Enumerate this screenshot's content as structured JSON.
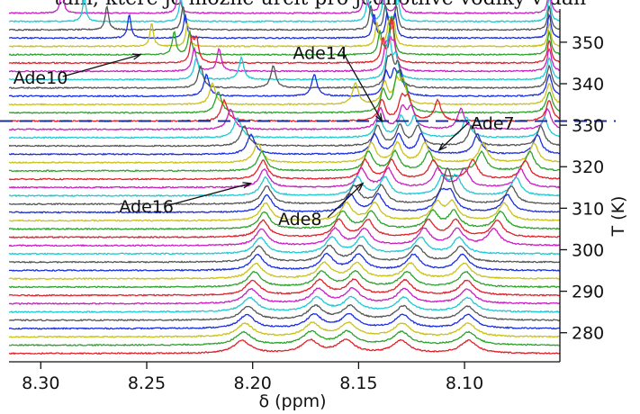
{
  "caption_fragment": "tain, které je možné určit pro jednotlivé vodíky v dan",
  "chart_data": {
    "type": "line",
    "title": "",
    "xlabel": "δ (ppm)",
    "ylabel": "T (K)",
    "x_ticks": [
      8.3,
      8.25,
      8.2,
      8.15,
      8.1
    ],
    "x_tick_labels": [
      "8.30",
      "8.25",
      "8.20",
      "8.15",
      "8.10"
    ],
    "xlim": [
      8.315,
      8.055
    ],
    "y_ticks": [
      280,
      290,
      300,
      310,
      320,
      330,
      340,
      350
    ],
    "y_tick_labels": [
      "280",
      "290",
      "300",
      "310",
      "320",
      "330",
      "340",
      "350"
    ],
    "ylim": [
      273,
      358
    ],
    "grid": false,
    "stack": {
      "first_temperature": 275,
      "last_temperature": 357,
      "step": 2
    },
    "trace_colors": [
      "#e0212a",
      "#2ba32b",
      "#c9c21a",
      "#1a2ee0",
      "#555555",
      "#1ec9d6",
      "#c91ec3"
    ],
    "dashed_line": {
      "temperature": 331,
      "color": "#1f2f8f"
    },
    "annotations": [
      {
        "label": "Ade10",
        "text_x": 8.313,
        "text_temperature": 340,
        "arrow_x": 8.253,
        "arrow_temperature": 347
      },
      {
        "label": "Ade14",
        "text_x": 8.181,
        "text_temperature": 346,
        "arrow_x": 8.139,
        "arrow_temperature": 331
      },
      {
        "label": "Ade7",
        "text_x": 8.097,
        "text_temperature": 329,
        "arrow_x": 8.112,
        "arrow_temperature": 324
      },
      {
        "label": "Ade16",
        "text_x": 8.263,
        "text_temperature": 309,
        "arrow_x": 8.201,
        "arrow_temperature": 316
      },
      {
        "label": "Ade8",
        "text_x": 8.188,
        "text_temperature": 306,
        "arrow_x": 8.148,
        "arrow_temperature": 316
      }
    ],
    "series": [
      {
        "signal": "Ade8",
        "points": [
          {
            "T": 275,
            "x": 8.173
          },
          {
            "T": 290,
            "x": 8.168
          },
          {
            "T": 300,
            "x": 8.162
          },
          {
            "T": 310,
            "x": 8.153
          },
          {
            "T": 318,
            "x": 8.146
          },
          {
            "T": 325,
            "x": 8.141
          },
          {
            "T": 340,
            "x": 8.136
          },
          {
            "T": 357,
            "x": 8.131
          }
        ]
      },
      {
        "signal": "Ade16",
        "points": [
          {
            "T": 275,
            "x": 8.205
          },
          {
            "T": 300,
            "x": 8.196
          },
          {
            "T": 310,
            "x": 8.193
          },
          {
            "T": 320,
            "x": 8.196
          },
          {
            "T": 330,
            "x": 8.212
          },
          {
            "T": 340,
            "x": 8.226
          },
          {
            "T": 357,
            "x": 8.235
          }
        ]
      },
      {
        "signal": "Ade14",
        "points": [
          {
            "T": 275,
            "x": 8.156
          },
          {
            "T": 290,
            "x": 8.152
          },
          {
            "T": 300,
            "x": 8.148
          },
          {
            "T": 310,
            "x": 8.14
          },
          {
            "T": 320,
            "x": 8.132
          },
          {
            "T": 330,
            "x": 8.129
          },
          {
            "T": 340,
            "x": 8.135
          },
          {
            "T": 357,
            "x": 8.147
          }
        ]
      },
      {
        "signal": "Ade7",
        "points": [
          {
            "T": 275,
            "x": 8.098
          },
          {
            "T": 290,
            "x": 8.099
          },
          {
            "T": 300,
            "x": 8.103
          },
          {
            "T": 310,
            "x": 8.107
          },
          {
            "T": 320,
            "x": 8.118
          },
          {
            "T": 330,
            "x": 8.126
          },
          {
            "T": 340,
            "x": 8.132
          },
          {
            "T": 357,
            "x": 8.139
          }
        ]
      },
      {
        "signal": "Ade10",
        "points": [
          {
            "T": 275,
            "x": 8.13
          },
          {
            "T": 290,
            "x": 8.128
          },
          {
            "T": 300,
            "x": 8.12
          },
          {
            "T": 310,
            "x": 8.11
          },
          {
            "T": 320,
            "x": 8.09
          },
          {
            "T": 330,
            "x": 8.103
          },
          {
            "T": 340,
            "x": 8.2
          },
          {
            "T": 357,
            "x": 8.29
          }
        ]
      },
      {
        "signal": "",
        "points": [
          {
            "T": 300,
            "x": 8.087
          },
          {
            "T": 310,
            "x": 8.079
          },
          {
            "T": 320,
            "x": 8.068
          },
          {
            "T": 330,
            "x": 8.06
          }
        ]
      }
    ]
  }
}
